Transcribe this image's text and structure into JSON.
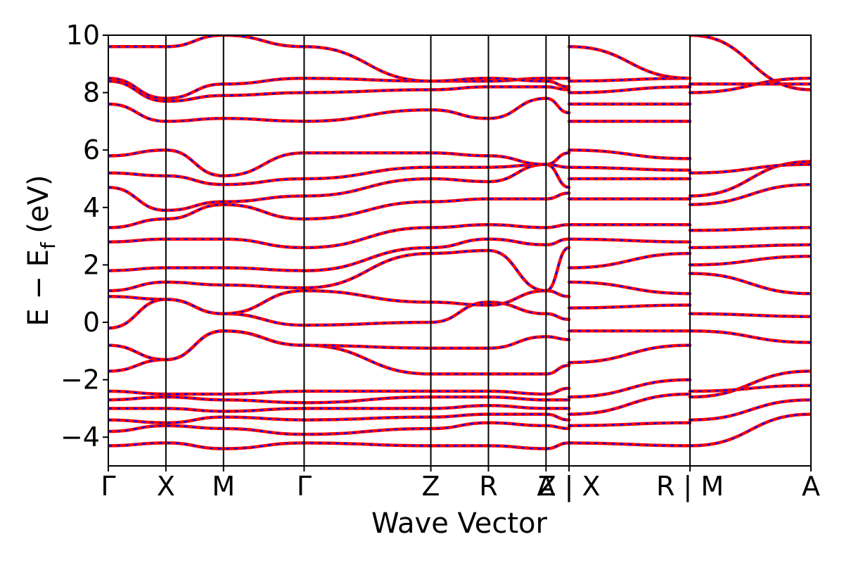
{
  "chart_data": {
    "type": "line",
    "title": "",
    "xlabel": "Wave Vector",
    "ylabel": {
      "main": "E − E",
      "subscript": "f",
      "unit": " (eV)"
    },
    "ylim": [
      -5,
      10
    ],
    "yticks": [
      -4,
      -2,
      0,
      2,
      4,
      6,
      8,
      10
    ],
    "ytick_labels": [
      "−4",
      "−2",
      "0",
      "2",
      "4",
      "6",
      "8",
      "10"
    ],
    "segments": [
      {
        "labels": [
          "Γ",
          "X",
          "M",
          "Γ",
          "Z",
          "R",
          "A",
          "Z"
        ],
        "positions": [
          0,
          1,
          2,
          3.4,
          5.6,
          6.6,
          7.6,
          8.0
        ]
      },
      {
        "labels": [
          "X",
          "R"
        ],
        "positions": [
          8.0,
          10.1
        ]
      },
      {
        "labels": [
          "M",
          "A"
        ],
        "positions": [
          10.1,
          12.2
        ]
      }
    ],
    "xtick_labels": [
      "Γ",
      "X",
      "M",
      "Γ",
      "Z",
      "R",
      "A",
      "Z | X",
      "R | M",
      "A"
    ],
    "xtick_positions": [
      0,
      1,
      2,
      3.4,
      5.6,
      6.6,
      7.6,
      8.0,
      10.1,
      12.2
    ],
    "series": [
      {
        "color": "#ff0000",
        "style": "solid"
      },
      {
        "color": "#0000ff",
        "style": "dotted"
      }
    ],
    "band_summary": {
      "segment1": {
        "x": [
          0,
          1,
          2,
          3.4,
          5.6,
          6.6,
          7.6,
          8.0
        ],
        "bands": [
          [
            -4.3,
            -4.2,
            -4.4,
            -4.2,
            -4.3,
            -4.3,
            -4.4,
            -4.2
          ],
          [
            -3.8,
            -3.6,
            -3.7,
            -3.9,
            -3.7,
            -3.5,
            -3.6,
            -3.7
          ],
          [
            -3.4,
            -3.5,
            -3.3,
            -3.4,
            -3.3,
            -3.2,
            -3.2,
            -3.4
          ],
          [
            -3.0,
            -3.0,
            -3.1,
            -3.0,
            -3.0,
            -2.9,
            -3.0,
            -3.0
          ],
          [
            -2.7,
            -2.6,
            -2.7,
            -2.8,
            -2.6,
            -2.6,
            -2.7,
            -2.7
          ],
          [
            -2.4,
            -2.5,
            -2.5,
            -2.4,
            -2.4,
            -2.4,
            -2.5,
            -2.3
          ],
          [
            -1.7,
            -1.3,
            -0.3,
            -0.8,
            -1.8,
            -1.8,
            -1.8,
            -1.5
          ],
          [
            -0.8,
            -1.3,
            -0.3,
            -0.8,
            -0.9,
            -0.9,
            -0.5,
            -0.6
          ],
          [
            -0.2,
            0.8,
            0.3,
            -0.1,
            0.0,
            0.7,
            0.3,
            0.1
          ],
          [
            0.9,
            0.8,
            0.3,
            1.1,
            0.7,
            0.6,
            1.1,
            0.9
          ],
          [
            1.1,
            1.4,
            1.3,
            1.2,
            2.4,
            2.5,
            1.1,
            2.6
          ],
          [
            1.8,
            1.9,
            1.9,
            1.8,
            2.6,
            2.9,
            2.7,
            2.9
          ],
          [
            2.8,
            2.9,
            2.9,
            2.6,
            3.3,
            3.4,
            3.3,
            3.4
          ],
          [
            3.3,
            3.6,
            4.1,
            3.6,
            4.2,
            4.3,
            4.3,
            4.5
          ],
          [
            4.7,
            3.9,
            4.2,
            4.4,
            5.0,
            4.9,
            5.5,
            4.7
          ],
          [
            5.2,
            5.1,
            4.8,
            5.0,
            5.4,
            5.4,
            5.5,
            5.4
          ],
          [
            5.8,
            6.0,
            5.1,
            5.9,
            5.9,
            5.8,
            5.5,
            5.9
          ],
          [
            7.6,
            7.0,
            7.1,
            7.0,
            7.4,
            7.1,
            7.8,
            7.3
          ],
          [
            8.4,
            7.7,
            7.9,
            8.0,
            8.1,
            8.2,
            8.2,
            8.1
          ],
          [
            8.5,
            7.8,
            8.3,
            8.5,
            8.4,
            8.4,
            8.5,
            8.5
          ],
          [
            9.6,
            9.6,
            10.0,
            9.6,
            8.4,
            8.5,
            8.4,
            8.2
          ]
        ]
      },
      "segment2": {
        "x": [
          8.0,
          10.1
        ],
        "bands": [
          [
            -4.2,
            -4.3
          ],
          [
            -3.6,
            -3.5
          ],
          [
            -3.2,
            -2.5
          ],
          [
            -2.6,
            -2.0
          ],
          [
            -1.4,
            -0.8
          ],
          [
            -0.3,
            -0.3
          ],
          [
            0.5,
            0.6
          ],
          [
            1.4,
            1.0
          ],
          [
            1.9,
            2.4
          ],
          [
            2.9,
            2.8
          ],
          [
            3.4,
            3.4
          ],
          [
            4.3,
            4.3
          ],
          [
            5.0,
            5.0
          ],
          [
            5.4,
            5.3
          ],
          [
            6.0,
            5.7
          ],
          [
            7.0,
            7.0
          ],
          [
            7.6,
            7.6
          ],
          [
            8.0,
            8.2
          ],
          [
            8.4,
            8.5
          ],
          [
            9.6,
            8.5
          ]
        ]
      },
      "segment3": {
        "x": [
          10.1,
          12.2
        ],
        "bands": [
          [
            -4.3,
            -3.2
          ],
          [
            -3.4,
            -2.7
          ],
          [
            -2.6,
            -1.7
          ],
          [
            -2.4,
            -2.2
          ],
          [
            -0.3,
            -0.7
          ],
          [
            0.3,
            0.2
          ],
          [
            1.7,
            1.0
          ],
          [
            2.0,
            2.3
          ],
          [
            2.6,
            2.7
          ],
          [
            3.2,
            3.3
          ],
          [
            4.1,
            4.8
          ],
          [
            4.4,
            5.6
          ],
          [
            5.2,
            5.5
          ],
          [
            8.3,
            8.3
          ],
          [
            8.0,
            8.5
          ],
          [
            10.0,
            8.1
          ]
        ]
      }
    },
    "grid": false,
    "legend": "none"
  }
}
